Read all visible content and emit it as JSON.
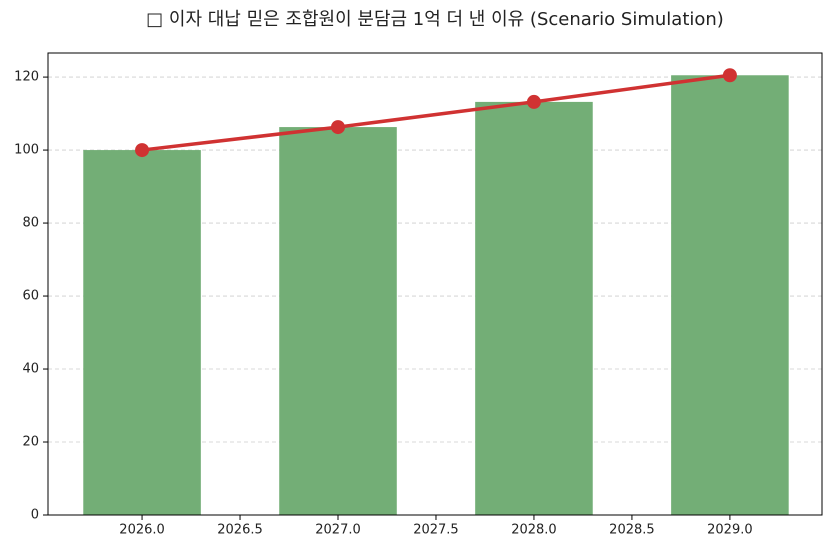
{
  "chart_data": {
    "type": "bar",
    "title": "□ 이자 대납 믿은 조합원이 분담금 1억 더 낸 이유 (Scenario Simulation)",
    "x": [
      2026,
      2027,
      2028,
      2029
    ],
    "series": [
      {
        "type": "bar",
        "color": "#73ae76",
        "values": [
          100,
          106.3,
          113.2,
          120.5
        ]
      },
      {
        "type": "line",
        "color": "#d03232",
        "values": [
          100,
          106.3,
          113.2,
          120.5
        ]
      }
    ],
    "xlim": [
      2025.52,
      2029.47
    ],
    "xticks": [
      {
        "value": 2026,
        "label": "2026.0"
      },
      {
        "value": 2026.5,
        "label": "2026.5"
      },
      {
        "value": 2027,
        "label": "2027.0"
      },
      {
        "value": 2027.5,
        "label": "2027.5"
      },
      {
        "value": 2028,
        "label": "2028.0"
      },
      {
        "value": 2028.5,
        "label": "2028.5"
      },
      {
        "value": 2029,
        "label": "2029.0"
      }
    ],
    "ylim": [
      0,
      126.6
    ],
    "yticks": [
      0,
      20,
      40,
      60,
      80,
      100,
      120
    ],
    "grid": true
  }
}
